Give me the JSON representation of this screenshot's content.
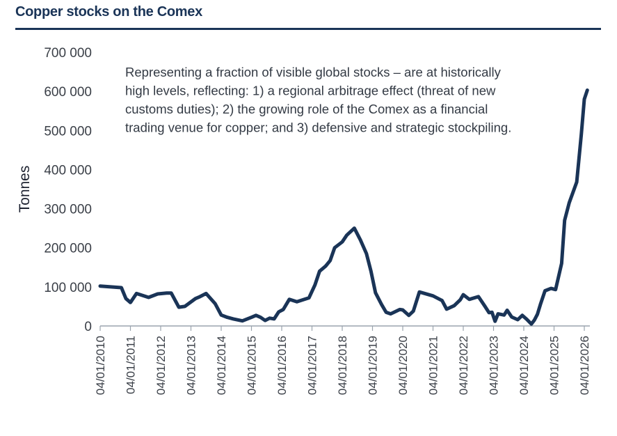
{
  "title": "Copper stocks on the Comex",
  "chart_data": {
    "type": "line",
    "ylabel": "Tonnes",
    "ylim": [
      0,
      700000
    ],
    "yticks": [
      "0",
      "100 000",
      "200 000",
      "300 000",
      "400 000",
      "500 000",
      "600 000",
      "700 000"
    ],
    "ytick_values": [
      0,
      100000,
      200000,
      300000,
      400000,
      500000,
      600000,
      700000
    ],
    "xticks": [
      "04/01/2010",
      "04/01/2011",
      "04/01/2012",
      "04/01/2013",
      "04/01/2014",
      "04/01/2015",
      "04/01/2016",
      "04/01/2017",
      "04/01/2018",
      "04/01/2019",
      "04/01/2020",
      "04/01/2021",
      "04/01/2022",
      "04/01/2023",
      "04/01/2024",
      "04/01/2025",
      "04/01/2026"
    ],
    "annotation": [
      "Representing a fraction of visible global stocks – are at historically",
      "high levels, reflecting: 1) a regional arbitrage effect (threat of new",
      "customs duties); 2) the growing role of the Comex as a financial",
      "trading venue for copper; and 3) defensive and strategic stockpiling."
    ],
    "line_color": "#1a3457",
    "series": [
      {
        "x": [
          2010.0,
          2010.7,
          2010.85,
          2011.0,
          2011.2,
          2011.6,
          2011.9,
          2012.2,
          2012.35,
          2012.6,
          2012.8,
          2013.15,
          2013.3,
          2013.5,
          2013.8,
          2014.0,
          2014.2,
          2014.4,
          2014.7,
          2015.0,
          2015.15,
          2015.3,
          2015.45,
          2015.6,
          2015.75,
          2015.9,
          2016.05,
          2016.25,
          2016.5,
          2016.9,
          2017.1,
          2017.25,
          2017.45,
          2017.6,
          2017.75,
          2018.0,
          2018.15,
          2018.4,
          2018.6,
          2018.8,
          2018.95,
          2019.1,
          2019.3,
          2019.45,
          2019.6,
          2019.9,
          2020.0,
          2020.2,
          2020.35,
          2020.55,
          2021.0,
          2021.3,
          2021.45,
          2021.7,
          2021.9,
          2022.0,
          2022.2,
          2022.5,
          2022.7,
          2022.85,
          2022.95,
          2023.05,
          2023.15,
          2023.35,
          2023.45,
          2023.6,
          2023.8,
          2023.95,
          2024.1,
          2024.25,
          2024.35,
          2024.45,
          2024.55,
          2024.7,
          2024.9,
          2025.05,
          2025.25,
          2025.35,
          2025.5,
          2025.75,
          2025.9,
          2026.0,
          2026.1
        ],
        "y": [
          102000,
          98000,
          70000,
          60000,
          83000,
          73000,
          82000,
          84000,
          84000,
          48000,
          50000,
          70000,
          75000,
          83000,
          57000,
          28000,
          22000,
          18000,
          13000,
          22000,
          27000,
          22000,
          14000,
          20000,
          18000,
          36000,
          42000,
          68000,
          62000,
          72000,
          105000,
          140000,
          153000,
          167000,
          200000,
          215000,
          232000,
          250000,
          220000,
          185000,
          140000,
          85000,
          55000,
          35000,
          31000,
          42000,
          41000,
          27000,
          38000,
          87000,
          77000,
          65000,
          43000,
          52000,
          67000,
          80000,
          68000,
          75000,
          52000,
          34000,
          35000,
          12000,
          31000,
          28000,
          40000,
          23000,
          16000,
          27000,
          17000,
          5000,
          15000,
          30000,
          55000,
          90000,
          96000,
          93000,
          160000,
          270000,
          315000,
          368000,
          490000,
          580000,
          603000
        ]
      }
    ]
  }
}
